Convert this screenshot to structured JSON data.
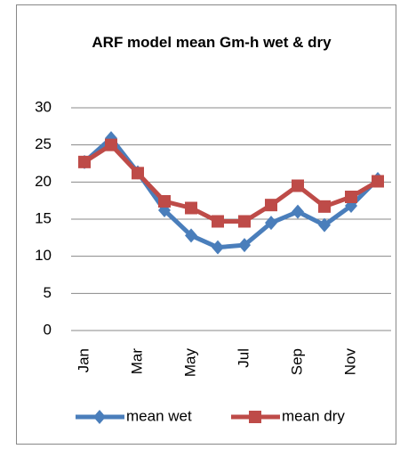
{
  "chart_data": {
    "type": "line",
    "title": "ARF model mean Gm-h wet & dry",
    "categories": [
      "Jan",
      null,
      "Mar",
      null,
      "May",
      null,
      "Jul",
      null,
      "Sep",
      null,
      "Nov",
      null
    ],
    "series": [
      {
        "name": "mean wet",
        "color": "#4a7ebb",
        "marker": "diamond",
        "values": [
          22.7,
          25.9,
          21.3,
          16.2,
          12.8,
          11.2,
          11.5,
          14.5,
          16.0,
          14.2,
          16.8,
          20.4
        ]
      },
      {
        "name": "mean dry",
        "color": "#be4b48",
        "marker": "square",
        "values": [
          22.7,
          25.0,
          21.2,
          17.4,
          16.5,
          14.7,
          14.7,
          16.9,
          19.5,
          16.7,
          18.0,
          20.1
        ]
      }
    ],
    "ylim": [
      0,
      30
    ],
    "yticks": [
      0,
      5,
      10,
      15,
      20,
      25,
      30
    ],
    "grid": true,
    "legend": "bottom"
  }
}
